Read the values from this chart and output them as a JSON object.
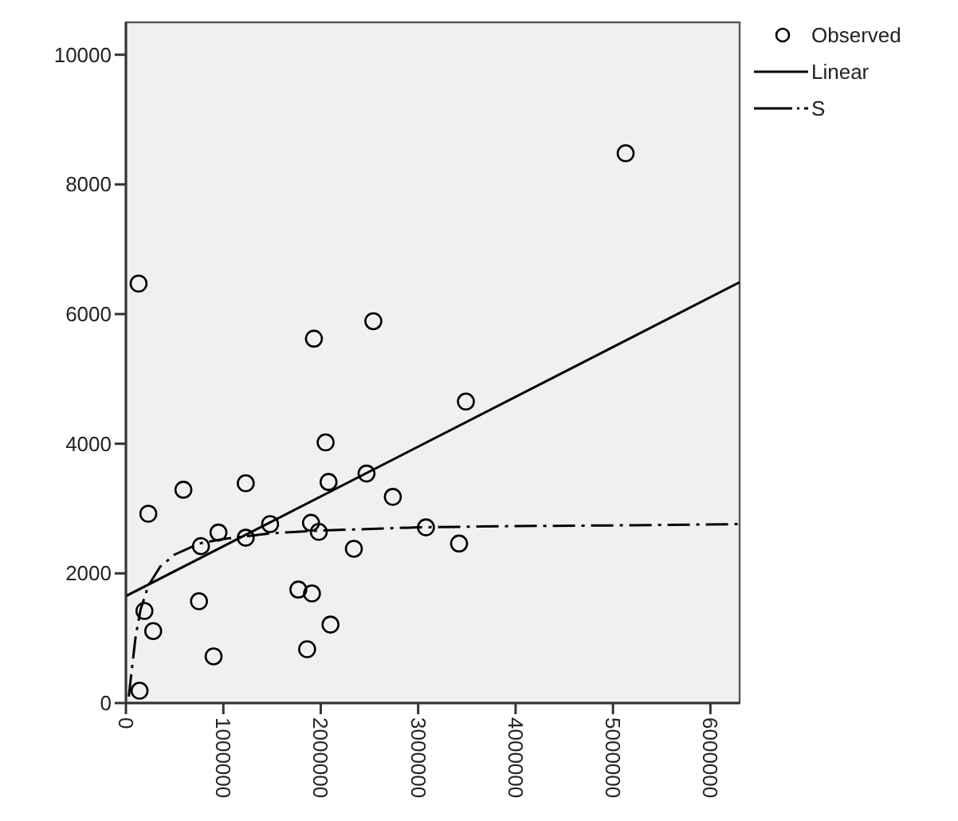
{
  "chart_data": {
    "type": "scatter",
    "xlim": [
      0,
      6300000
    ],
    "ylim": [
      0,
      10500
    ],
    "xticks": [
      0,
      1000000,
      2000000,
      3000000,
      4000000,
      5000000,
      6000000
    ],
    "yticks": [
      0,
      2000,
      4000,
      6000,
      8000,
      10000
    ],
    "grid": false,
    "legend": "right",
    "series": [
      {
        "name": "Observed",
        "marker": "circle",
        "color": "#000000",
        "x": [
          140000,
          190000,
          280000,
          230000,
          590000,
          770000,
          750000,
          900000,
          950000,
          1230000,
          1230000,
          1480000,
          1770000,
          1910000,
          1860000,
          1900000,
          1980000,
          2050000,
          2080000,
          2100000,
          2340000,
          2470000,
          2740000,
          3080000,
          3420000,
          3490000,
          130000,
          1930000,
          2540000,
          5130000
        ],
        "values": [
          190,
          1420,
          1110,
          2920,
          3290,
          2420,
          1570,
          720,
          2630,
          3390,
          2550,
          2760,
          1750,
          1690,
          830,
          2780,
          2640,
          4020,
          3410,
          1210,
          2380,
          3540,
          3180,
          2710,
          2460,
          4650,
          6470,
          5620,
          5890,
          8480
        ]
      },
      {
        "name": "Linear",
        "type": "line",
        "line_style": "solid",
        "marker": "none",
        "color": "#000000",
        "x": [
          0,
          6300000
        ],
        "values": [
          1650,
          6490
        ]
      },
      {
        "name": "S",
        "type": "line",
        "line_style": "dashdot",
        "marker": "none",
        "color": "#000000",
        "x": [
          30000,
          50000,
          100000,
          150000,
          230000,
          350000,
          500000,
          750000,
          1000000,
          1500000,
          2000000,
          3000000,
          4000000,
          5000000,
          6300000
        ],
        "values": [
          100,
          380,
          1030,
          1440,
          1810,
          2100,
          2290,
          2460,
          2530,
          2620,
          2660,
          2710,
          2730,
          2740,
          2760
        ]
      }
    ]
  }
}
